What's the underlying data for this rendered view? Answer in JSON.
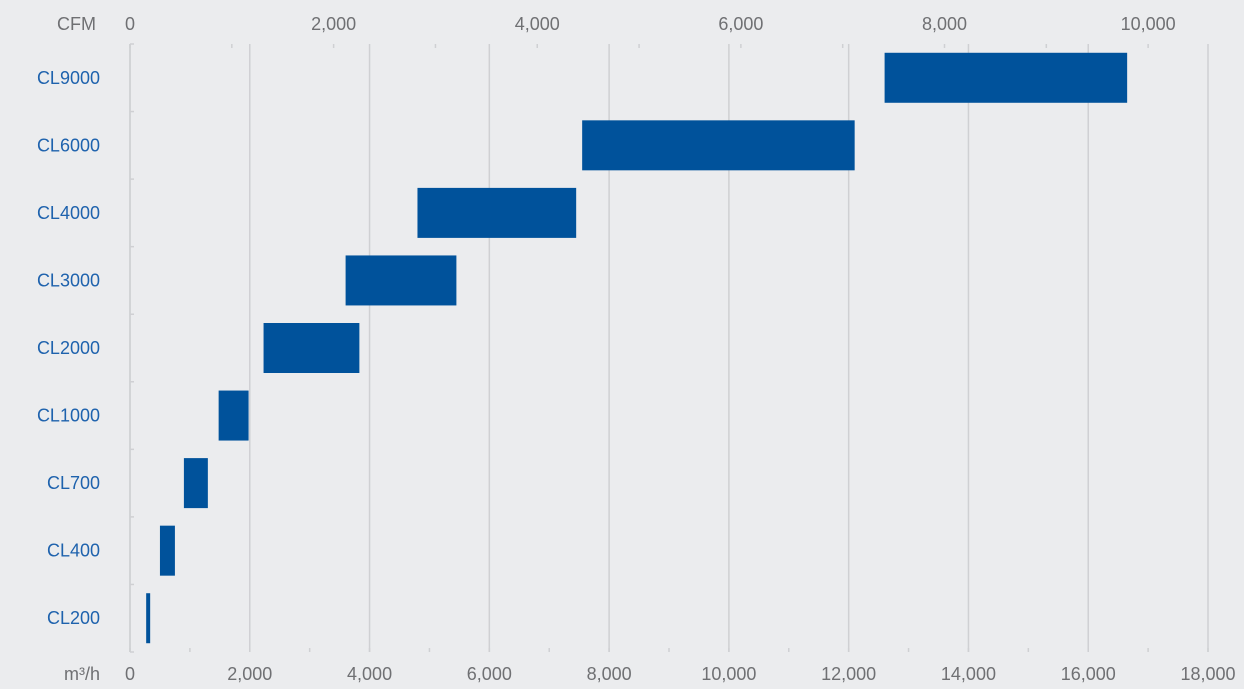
{
  "chart_data": {
    "type": "bar",
    "orientation": "horizontal-range",
    "title": "",
    "top_axis": {
      "unit_label": "CFM",
      "range": [
        0,
        10588
      ],
      "ticks": [
        0,
        2000,
        4000,
        6000,
        8000,
        10000
      ],
      "tick_labels": [
        "0",
        "2,000",
        "4,000",
        "6,000",
        "8,000",
        "10,000"
      ]
    },
    "bottom_axis": {
      "unit_label": "m³/h",
      "range": [
        0,
        18000
      ],
      "ticks": [
        0,
        2000,
        4000,
        6000,
        8000,
        10000,
        12000,
        14000,
        16000,
        18000
      ],
      "tick_labels": [
        "0",
        "2,000",
        "4,000",
        "6,000",
        "8,000",
        "10,000",
        "12,000",
        "14,000",
        "16,000",
        "18,000"
      ]
    },
    "grid": true,
    "categories": [
      "CL9000",
      "CL6000",
      "CL4000",
      "CL3000",
      "CL2000",
      "CL1000",
      "CL700",
      "CL400",
      "CL200"
    ],
    "series": [
      {
        "ranges": [
          [
            12600,
            16650
          ],
          [
            7550,
            12100
          ],
          [
            4800,
            7450
          ],
          [
            3600,
            5450
          ],
          [
            2230,
            3830
          ],
          [
            1480,
            1980
          ],
          [
            900,
            1300
          ],
          [
            500,
            750
          ],
          [
            270,
            330
          ]
        ]
      }
    ],
    "bar_color": "#00529b",
    "grid_color": "#cfd0d3"
  }
}
